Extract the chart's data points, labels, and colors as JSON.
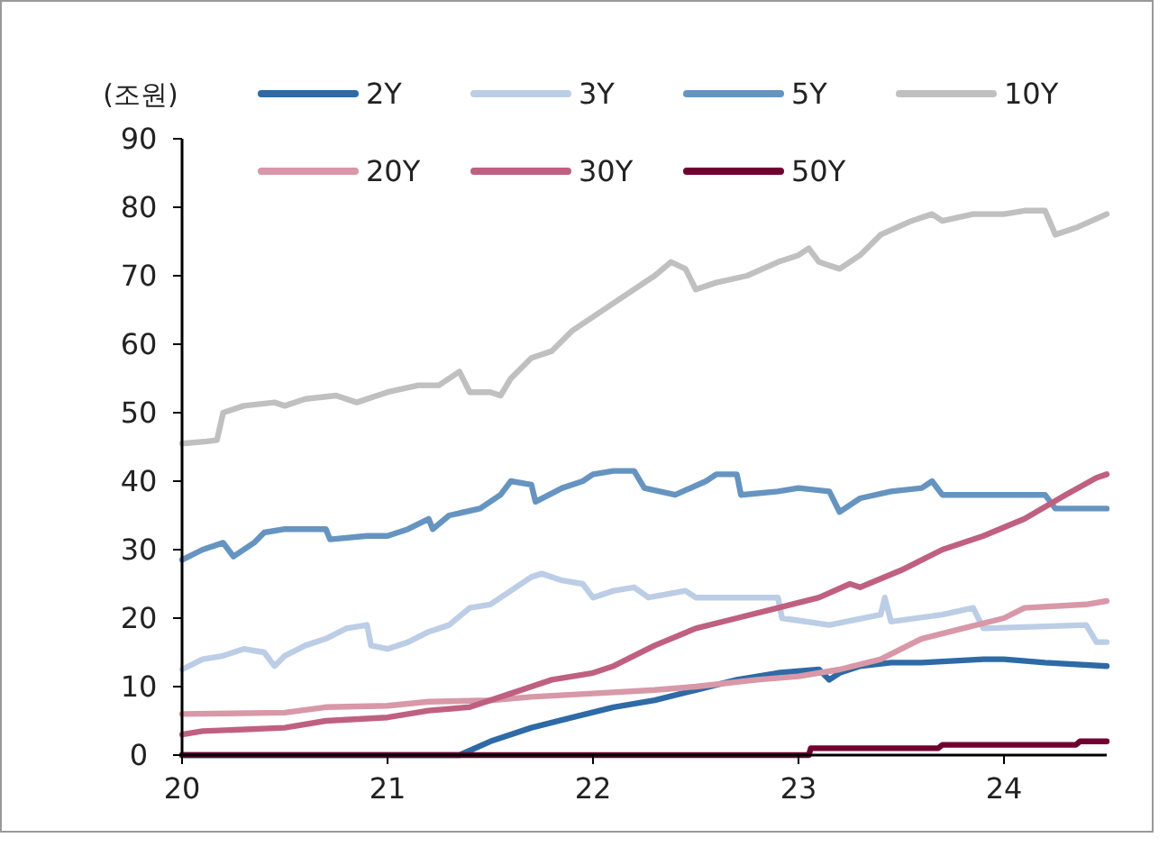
{
  "chart_data": {
    "type": "line",
    "ylabel": "(조원)",
    "xlim": [
      20,
      24.5
    ],
    "xticks": [
      20,
      21,
      22,
      23,
      24
    ],
    "ylim": [
      0,
      90
    ],
    "yticks": [
      0,
      10,
      20,
      30,
      40,
      50,
      60,
      70,
      80,
      90
    ],
    "grid": false,
    "legend": "top",
    "line_style": "solid",
    "marker": "none",
    "series": [
      {
        "name": "2Y",
        "color": "#2e6aa6",
        "x": [
          20,
          21.35,
          21.5,
          21.7,
          21.9,
          22.1,
          22.3,
          22.5,
          22.7,
          22.9,
          23.1,
          23.15,
          23.2,
          23.3,
          23.45,
          23.6,
          23.9,
          24.0,
          24.2,
          24.5
        ],
        "values": [
          0,
          0,
          2,
          4,
          5.5,
          7,
          8,
          9.5,
          11,
          12,
          12.5,
          11,
          12,
          13,
          13.5,
          13.5,
          14,
          14,
          13.5,
          13
        ]
      },
      {
        "name": "3Y",
        "color": "#bccde6",
        "x": [
          20,
          20.1,
          20.2,
          20.3,
          20.4,
          20.45,
          20.5,
          20.6,
          20.7,
          20.8,
          20.9,
          20.92,
          21.0,
          21.1,
          21.2,
          21.3,
          21.4,
          21.5,
          21.6,
          21.7,
          21.75,
          21.85,
          21.95,
          22.0,
          22.1,
          22.2,
          22.27,
          22.45,
          22.5,
          22.9,
          22.92,
          23.15,
          23.4,
          23.42,
          23.45,
          23.7,
          23.85,
          23.9,
          24.4,
          24.45,
          24.5
        ],
        "values": [
          12.5,
          14,
          14.5,
          15.5,
          15,
          13,
          14.5,
          16,
          17,
          18.5,
          19,
          16,
          15.5,
          16.5,
          18,
          19,
          21.5,
          22,
          24,
          26,
          26.5,
          25.5,
          25,
          23,
          24,
          24.5,
          23,
          24,
          23,
          23,
          20,
          19,
          20.5,
          23,
          19.5,
          20.5,
          21.5,
          18.5,
          19,
          16.5,
          16.5
        ]
      },
      {
        "name": "5Y",
        "color": "#6694c0",
        "x": [
          20,
          20.1,
          20.2,
          20.25,
          20.35,
          20.4,
          20.5,
          20.7,
          20.72,
          20.9,
          21.0,
          21.1,
          21.2,
          21.22,
          21.3,
          21.45,
          21.55,
          21.6,
          21.7,
          21.72,
          21.85,
          21.95,
          22.0,
          22.1,
          22.2,
          22.25,
          22.4,
          22.55,
          22.6,
          22.7,
          22.72,
          22.9,
          23.0,
          23.15,
          23.2,
          23.3,
          23.45,
          23.6,
          23.65,
          23.7,
          23.85,
          24.0,
          24.2,
          24.25,
          24.5
        ],
        "values": [
          28.5,
          30,
          31,
          29,
          31,
          32.5,
          33,
          33,
          31.5,
          32,
          32,
          33,
          34.5,
          33,
          35,
          36,
          38,
          40,
          39.5,
          37,
          39,
          40,
          41,
          41.5,
          41.5,
          39,
          38,
          40,
          41,
          41,
          38,
          38.5,
          39,
          38.5,
          35.5,
          37.5,
          38.5,
          39,
          40,
          38,
          38,
          38,
          38,
          36,
          36
        ]
      },
      {
        "name": "10Y",
        "color": "#c0c0c0",
        "x": [
          20,
          20.12,
          20.17,
          20.2,
          20.3,
          20.45,
          20.5,
          20.6,
          20.75,
          20.85,
          21.0,
          21.15,
          21.25,
          21.35,
          21.4,
          21.5,
          21.55,
          21.6,
          21.7,
          21.8,
          21.9,
          22.0,
          22.1,
          22.2,
          22.3,
          22.38,
          22.45,
          22.5,
          22.6,
          22.75,
          22.9,
          23.0,
          23.05,
          23.1,
          23.2,
          23.3,
          23.4,
          23.55,
          23.65,
          23.7,
          23.85,
          24.0,
          24.1,
          24.2,
          24.25,
          24.35,
          24.5
        ],
        "values": [
          45.5,
          45.8,
          46,
          50,
          51,
          51.5,
          51,
          52,
          52.5,
          51.5,
          53,
          54,
          54,
          56,
          53,
          53,
          52.5,
          55,
          58,
          59,
          62,
          64,
          66,
          68,
          70,
          72,
          71,
          68,
          69,
          70,
          72,
          73,
          74,
          72,
          71,
          73,
          76,
          78,
          79,
          78,
          79,
          79,
          79.5,
          79.5,
          76,
          77,
          79
        ]
      },
      {
        "name": "20Y",
        "color": "#d898a8",
        "x": [
          20,
          20.5,
          20.7,
          21.0,
          21.2,
          21.5,
          21.7,
          22.0,
          22.3,
          22.5,
          22.8,
          23.0,
          23.2,
          23.4,
          23.6,
          23.8,
          24.0,
          24.1,
          24.4,
          24.5
        ],
        "values": [
          6,
          6.2,
          7,
          7.2,
          7.8,
          8,
          8.5,
          9,
          9.5,
          10,
          11,
          11.5,
          12.5,
          14,
          17,
          18.5,
          20,
          21.5,
          22,
          22.5
        ]
      },
      {
        "name": "30Y",
        "color": "#c06080",
        "x": [
          20,
          20.1,
          20.5,
          20.7,
          21.0,
          21.2,
          21.4,
          21.6,
          21.8,
          22.0,
          22.1,
          22.3,
          22.5,
          22.7,
          22.9,
          23.1,
          23.25,
          23.3,
          23.5,
          23.7,
          23.9,
          24.1,
          24.3,
          24.45,
          24.5
        ],
        "values": [
          3,
          3.5,
          4,
          5,
          5.5,
          6.5,
          7,
          9,
          11,
          12,
          13,
          16,
          18.5,
          20,
          21.5,
          23,
          25,
          24.5,
          27,
          30,
          32,
          34.5,
          38,
          40.5,
          41
        ]
      },
      {
        "name": "50Y",
        "color": "#700030",
        "x": [
          20,
          23.05,
          23.06,
          23.68,
          23.7,
          24.35,
          24.37,
          24.5
        ],
        "values": [
          0,
          0,
          1,
          1,
          1.5,
          1.5,
          2,
          2
        ]
      }
    ]
  }
}
